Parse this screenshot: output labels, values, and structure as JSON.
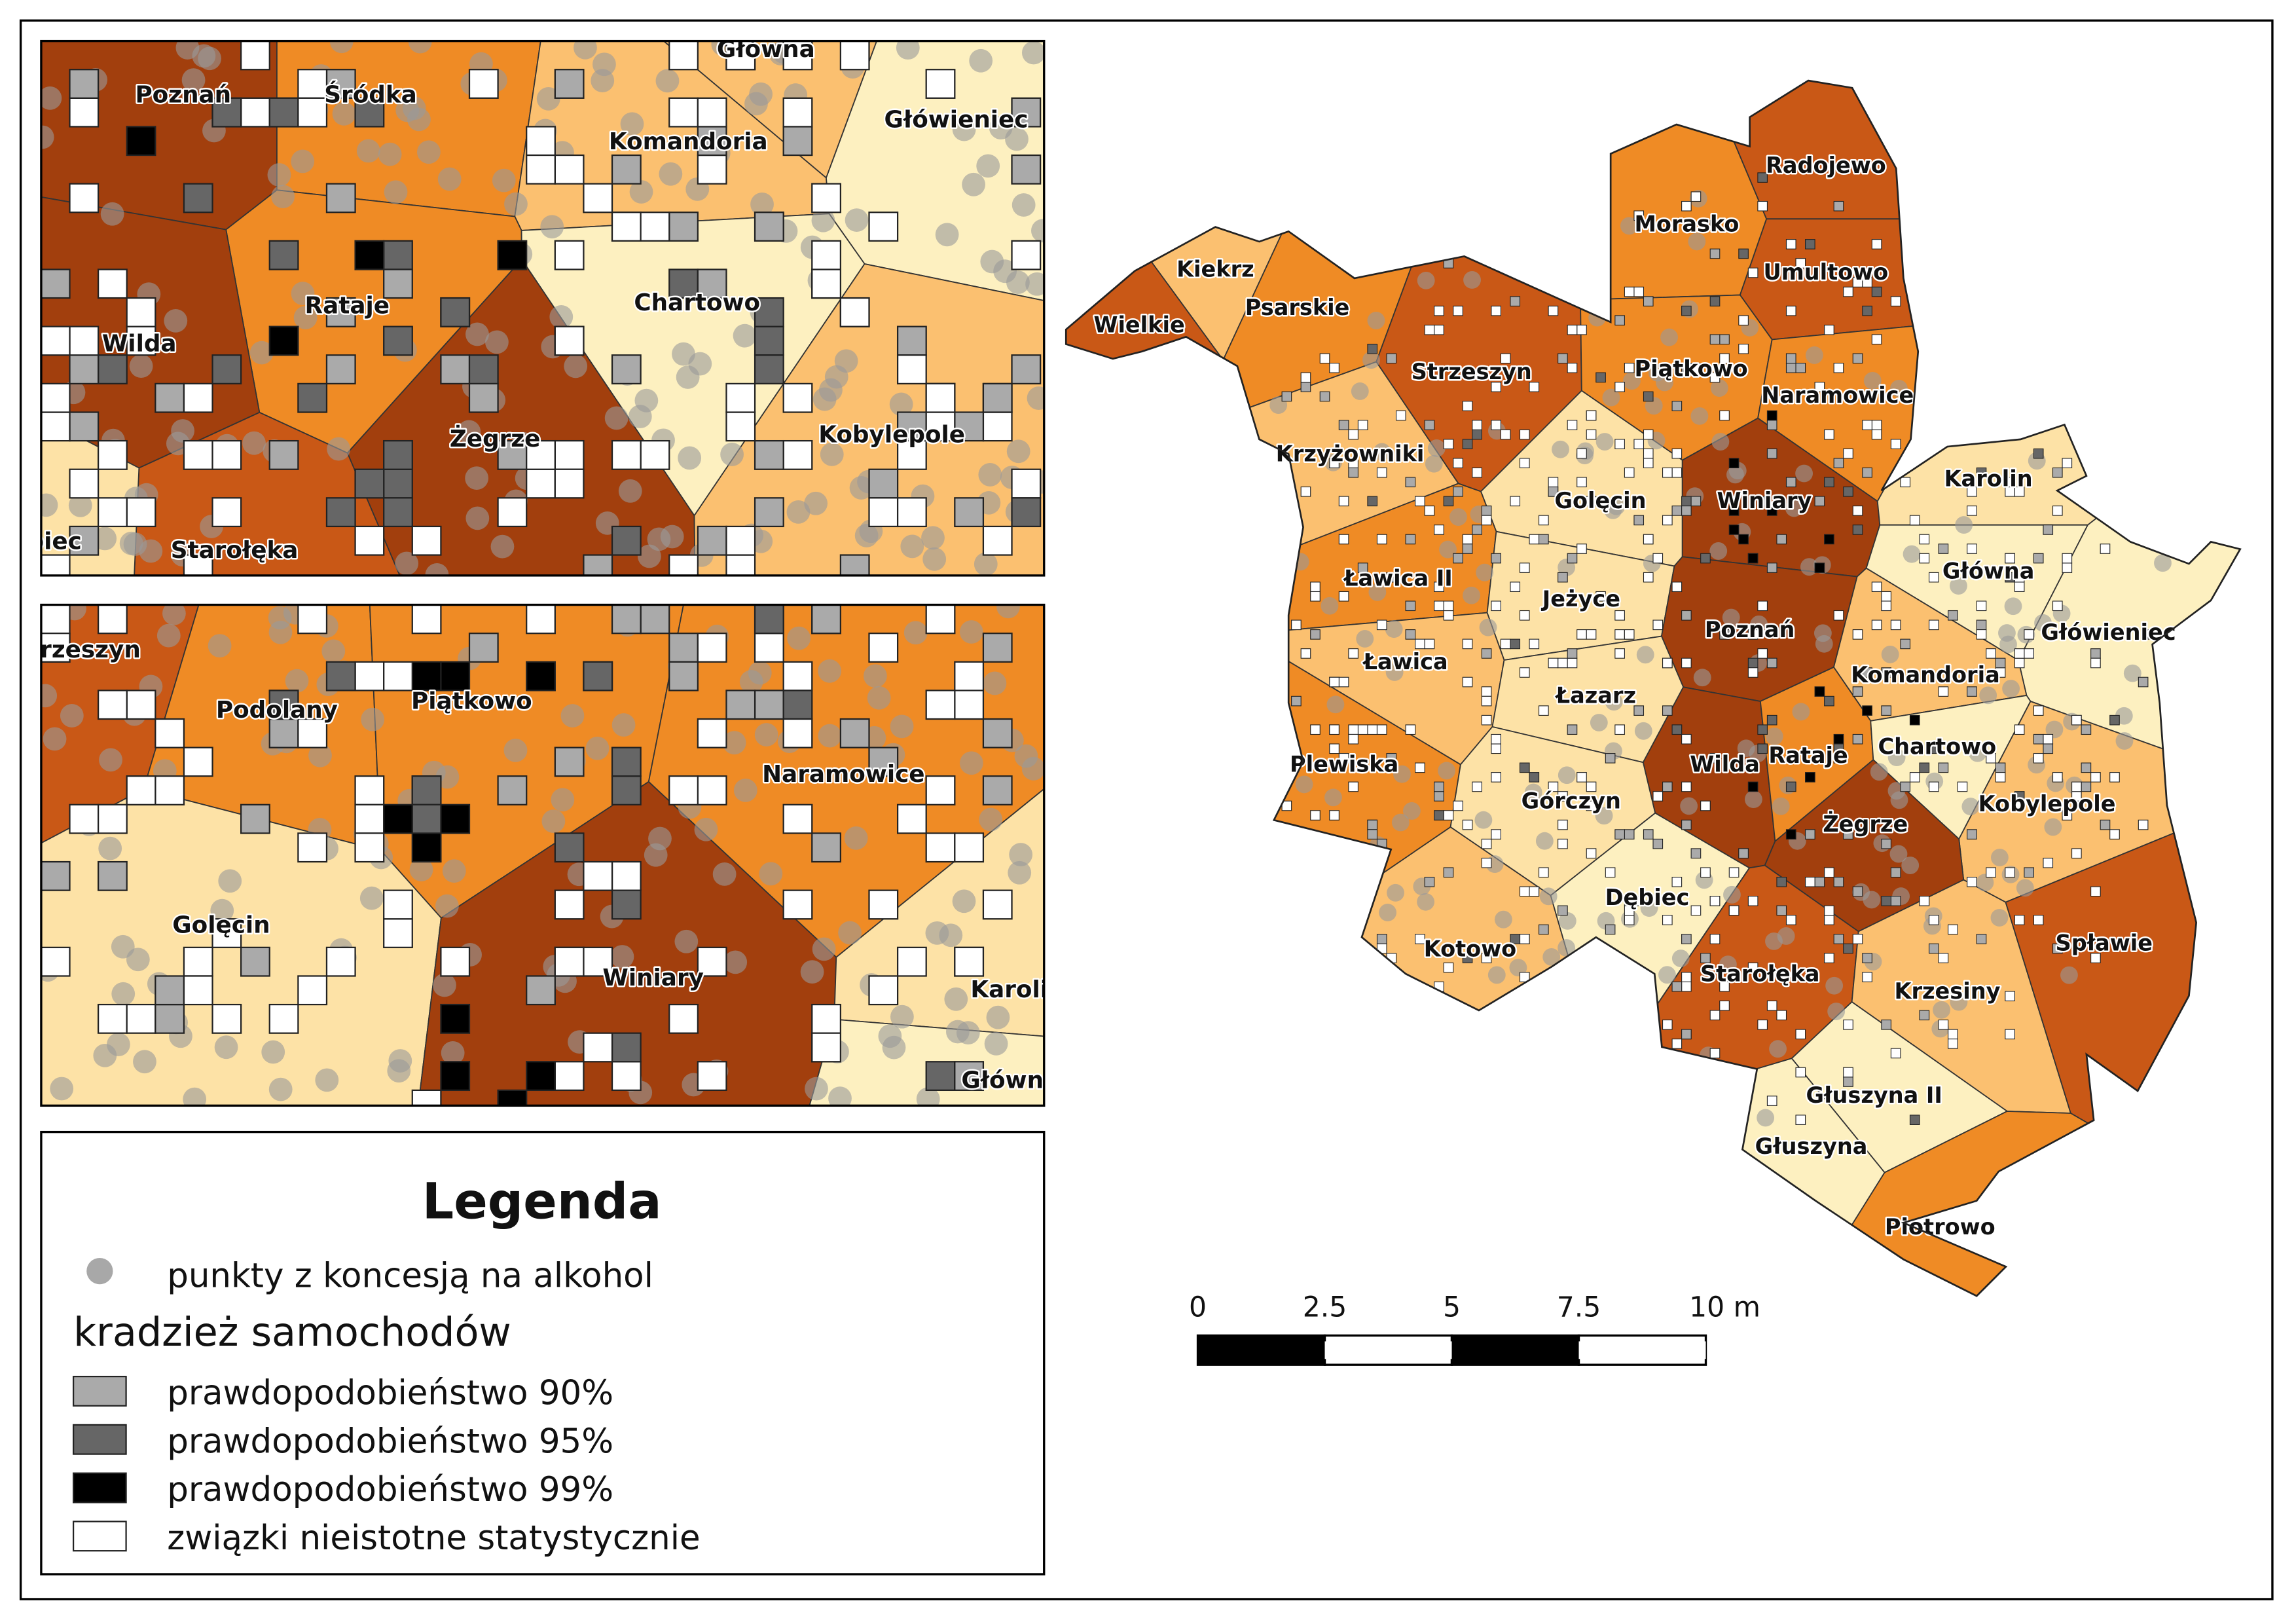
{
  "inset_top": {
    "labels": [
      "Poznań",
      "Śródka",
      "Główna",
      "Komandoria",
      "Główieniec",
      "Ratajе",
      "Chartowo",
      "Wilda",
      "Żegrze",
      "Kobylepole",
      "Starołęka",
      "Dębiec"
    ]
  },
  "inset_bottom": {
    "labels": [
      "Strzeszyn",
      "Podolany",
      "Piątkowo",
      "Naramowice",
      "Golęcin",
      "Winiary",
      "Karolin",
      "Główna"
    ]
  },
  "map": {
    "labels": [
      "Kiekrz",
      "Wielkie",
      "Psarskie",
      "Strzeszyn",
      "Morasko",
      "Radojewo",
      "Umultowo",
      "Piątkowo",
      "Naramowice",
      "Krzyżowniki",
      "Golęcin",
      "Winiary",
      "Karolin",
      "Ławica II",
      "Jeżyce",
      "Główna",
      "Główieniec",
      "Ławica",
      "Poznań",
      "Komandoria",
      "Łazarz",
      "Plewiska",
      "Wilda",
      "Ratajе",
      "Chartowo",
      "Górczyn",
      "Kobylepole",
      "Żegrze",
      "Dębiec",
      "Kotowo",
      "Starołęka",
      "Krzesiny",
      "Spławie",
      "Głuszyna II",
      "Głuszyna",
      "Piotrowo"
    ]
  },
  "legend": {
    "title": "Legenda",
    "points": "punkty z koncesją na alkohol",
    "group_title": "kradzież samochodów",
    "items": [
      "prawdopodobieństwo 90%",
      "prawdopodobieństwo 95%",
      "prawdopodobieństwo 99%",
      "związki nieistotne statystycznie"
    ]
  },
  "scale_bar": {
    "labels": [
      "0",
      "2.5",
      "5",
      "7.5",
      "10 m"
    ]
  }
}
